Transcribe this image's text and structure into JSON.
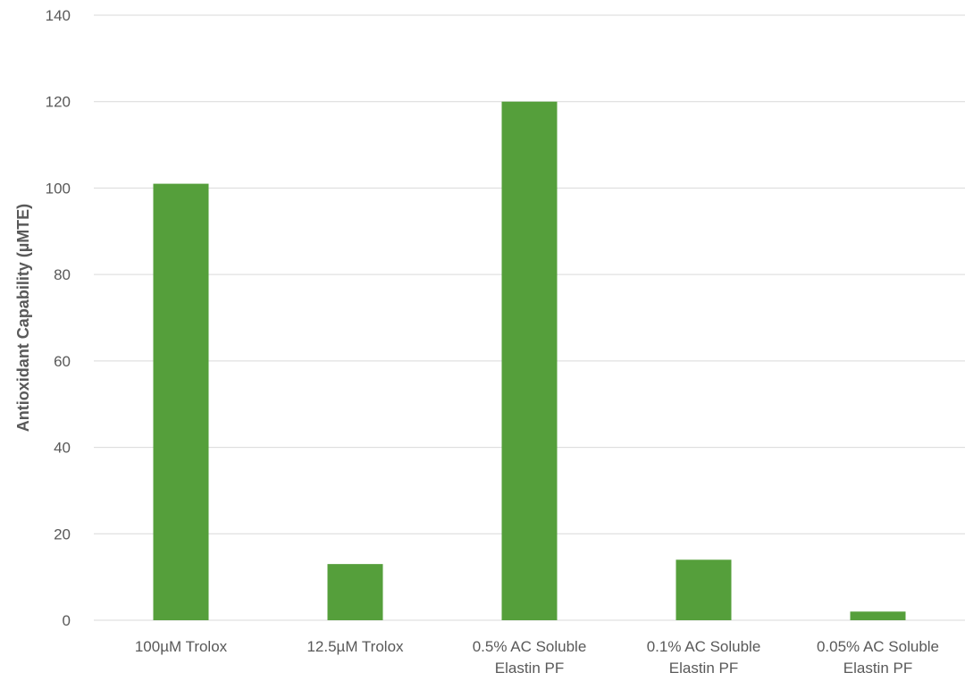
{
  "chart_data": {
    "type": "bar",
    "title": "",
    "xlabel": "",
    "ylabel": "Antioxidant Capability (µMTE)",
    "ylim": [
      0,
      140
    ],
    "yticks": [
      0,
      20,
      40,
      60,
      80,
      100,
      120,
      140
    ],
    "grid": true,
    "legend": "none",
    "categories": [
      [
        "100µM Trolox"
      ],
      [
        "12.5µM Trolox"
      ],
      [
        "0.5% AC Soluble",
        "Elastin PF"
      ],
      [
        "0.1% AC Soluble",
        "Elastin PF"
      ],
      [
        "0.05% AC Soluble",
        "Elastin PF"
      ]
    ],
    "series": [
      {
        "values": [
          101,
          13,
          120,
          14,
          2
        ],
        "color": "#559f3b"
      }
    ]
  }
}
